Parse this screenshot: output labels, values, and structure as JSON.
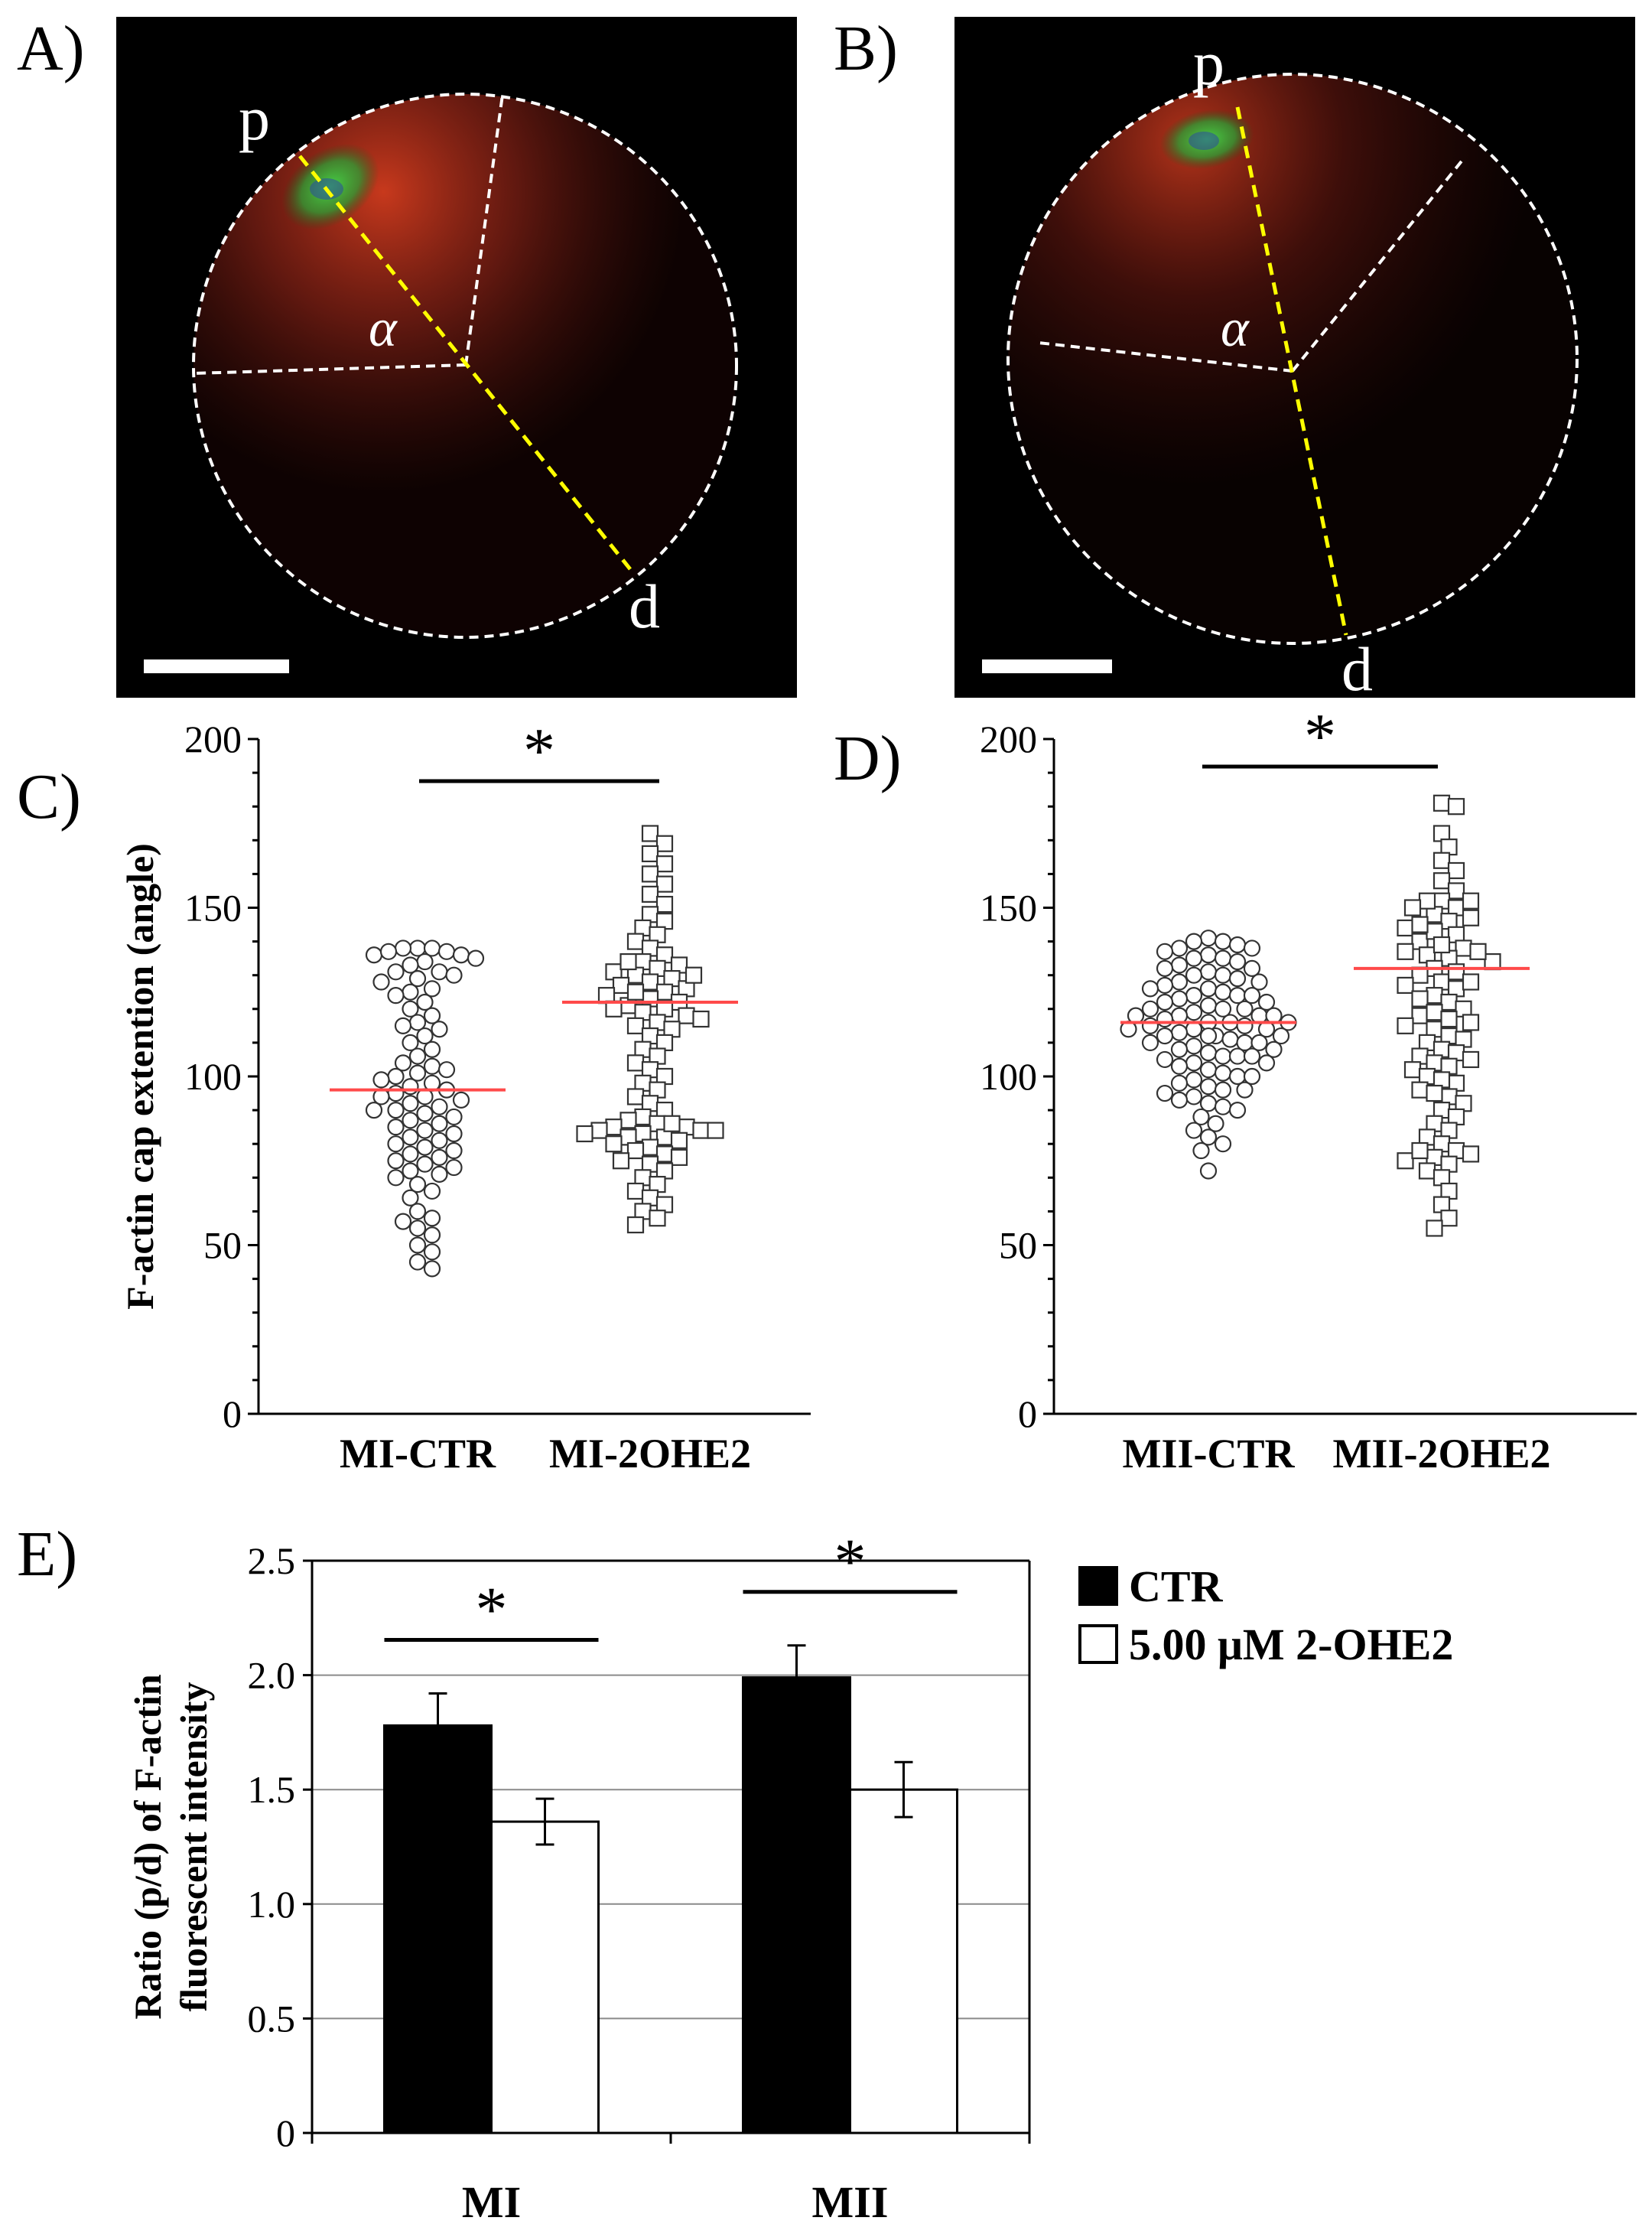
{
  "panels": {
    "a": {
      "letter": "A)",
      "label_p": "p",
      "label_d": "d",
      "label_alpha": "α"
    },
    "b": {
      "letter": "B)",
      "label_p": "p",
      "label_d": "d",
      "label_alpha": "α"
    },
    "c": {
      "letter": "C)"
    },
    "d": {
      "letter": "D)"
    },
    "e": {
      "letter": "E)"
    }
  },
  "colors": {
    "image_background": "#000000",
    "dashed_outline": "#ffffff",
    "axis_line": "#ffff00",
    "cap_red": "#c8321e",
    "spindle_green": "#3cb43c",
    "mean_line": "#ff4a4a",
    "ctr_bar": "#000000",
    "treated_bar": "#ffffff"
  },
  "chart_data": [
    {
      "type": "scatter",
      "panel": "C",
      "ylabel": "F-actin cap extention (angle)",
      "ylim": [
        0,
        200
      ],
      "yticks": [
        0,
        50,
        100,
        150,
        200
      ],
      "significance": "*",
      "groups": [
        {
          "name": "MI-CTR",
          "marker": "circle",
          "mean": 96,
          "values": [
            138,
            138,
            137,
            136,
            135,
            134,
            133,
            131,
            130,
            128,
            126,
            125,
            124,
            122,
            120,
            118,
            116,
            115,
            114,
            112,
            110,
            108,
            106,
            104,
            103,
            102,
            101,
            100,
            99,
            98,
            97,
            96,
            95,
            94,
            94,
            93,
            92,
            91,
            90,
            90,
            89,
            88,
            87,
            86,
            85,
            84,
            83,
            82,
            81,
            80,
            79,
            78,
            77,
            76,
            75,
            74,
            73,
            72,
            71,
            70,
            68,
            66,
            64,
            60,
            58,
            57,
            55,
            53,
            50,
            48,
            45,
            43,
            138,
            136,
            131,
            137,
            129
          ]
        },
        {
          "name": "MI-2OHE2",
          "marker": "square",
          "mean": 122,
          "values": [
            172,
            169,
            166,
            163,
            160,
            157,
            154,
            151,
            148,
            146,
            144,
            142,
            140,
            138,
            136,
            134,
            133,
            132,
            131,
            130,
            129,
            128,
            127,
            126,
            125,
            124,
            123,
            122,
            121,
            120,
            119,
            118,
            117,
            116,
            115,
            114,
            112,
            110,
            108,
            106,
            104,
            102,
            100,
            98,
            96,
            94,
            92,
            90,
            88,
            87,
            86,
            85,
            85,
            84,
            84,
            83,
            83,
            82,
            82,
            81,
            80,
            79,
            78,
            77,
            76,
            75,
            74,
            72,
            70,
            68,
            66,
            64,
            62,
            60,
            58,
            56,
            134,
            130,
            125,
            120,
            86,
            84
          ]
        }
      ]
    },
    {
      "type": "scatter",
      "panel": "D",
      "ylim": [
        0,
        200
      ],
      "yticks": [
        0,
        50,
        100,
        150,
        200
      ],
      "significance": "*",
      "groups": [
        {
          "name": "MII-CTR",
          "marker": "circle",
          "mean": 116,
          "values": [
            141,
            140,
            139,
            138,
            137,
            136,
            135,
            134,
            133,
            132,
            131,
            130,
            129,
            128,
            127,
            126,
            125,
            124,
            123,
            122,
            121,
            120,
            120,
            119,
            118,
            118,
            117,
            116,
            116,
            115,
            114,
            114,
            113,
            112,
            112,
            111,
            110,
            110,
            109,
            108,
            107,
            106,
            105,
            104,
            103,
            102,
            101,
            100,
            99,
            98,
            97,
            96,
            95,
            94,
            93,
            92,
            91,
            90,
            88,
            86,
            84,
            82,
            80,
            78,
            72,
            140,
            138,
            135,
            132,
            128,
            124,
            120,
            116,
            112,
            108,
            104,
            126,
            118,
            110,
            122,
            114,
            106,
            130,
            115,
            100,
            96,
            124,
            118,
            112,
            106
          ]
        },
        {
          "name": "MII-2OHE2",
          "marker": "square",
          "mean": 132,
          "values": [
            181,
            180,
            172,
            168,
            164,
            161,
            158,
            155,
            152,
            150,
            148,
            146,
            144,
            142,
            140,
            138,
            136,
            135,
            134,
            132,
            130,
            128,
            126,
            124,
            122,
            120,
            118,
            116,
            114,
            112,
            110,
            108,
            106,
            104,
            102,
            100,
            98,
            96,
            94,
            92,
            90,
            88,
            86,
            84,
            82,
            80,
            78,
            77,
            76,
            75,
            74,
            72,
            70,
            66,
            62,
            58,
            55,
            152,
            150,
            147,
            143,
            139,
            137,
            131,
            127,
            123,
            119,
            115,
            111,
            107,
            103,
            99,
            95,
            137,
            128,
            117,
            105,
            78,
            152,
            145
          ]
        }
      ]
    },
    {
      "type": "bar",
      "panel": "E",
      "categories": [
        "MI",
        "MII"
      ],
      "ylabel": "Ratio (p/d) of F-actin fluorescent intensity",
      "ylim": [
        0,
        2.5
      ],
      "yticks": [
        "0",
        "0.5",
        "1.0",
        "1.5",
        "2.0",
        "2.5"
      ],
      "gridlines": true,
      "series": [
        {
          "name": "CTR",
          "color": "#000000",
          "values": [
            1.78,
            1.99
          ],
          "errors": [
            0.14,
            0.14
          ]
        },
        {
          "name": "5.00 μM 2-OHE2",
          "color": "#ffffff",
          "values": [
            1.36,
            1.5
          ],
          "errors": [
            0.1,
            0.12
          ]
        }
      ],
      "significance": [
        "*",
        "*"
      ],
      "legend_position": "top-right"
    }
  ]
}
